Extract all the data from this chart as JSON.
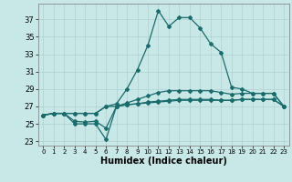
{
  "title": "",
  "xlabel": "Humidex (Indice chaleur)",
  "background_color": "#c8e8e8",
  "line_color": "#1a6b6b",
  "xlim": [
    -0.5,
    23.5
  ],
  "ylim": [
    22.5,
    38.8
  ],
  "yticks": [
    23,
    25,
    27,
    29,
    31,
    33,
    35,
    37
  ],
  "xticks": [
    0,
    1,
    2,
    3,
    4,
    5,
    6,
    7,
    8,
    9,
    10,
    11,
    12,
    13,
    14,
    15,
    16,
    17,
    18,
    19,
    20,
    21,
    22,
    23
  ],
  "series": [
    [
      26.0,
      26.2,
      26.2,
      25.0,
      25.0,
      25.0,
      23.2,
      27.0,
      27.2,
      27.3,
      27.4,
      27.5,
      27.6,
      27.7,
      27.7,
      27.7,
      27.7,
      27.7,
      27.7,
      27.8,
      27.8,
      27.8,
      27.8,
      27.0
    ],
    [
      26.0,
      26.2,
      26.2,
      25.3,
      25.2,
      25.3,
      24.5,
      27.0,
      27.4,
      27.8,
      28.2,
      28.6,
      28.8,
      28.8,
      28.8,
      28.8,
      28.8,
      28.6,
      28.4,
      28.5,
      28.5,
      28.5,
      28.5,
      27.0
    ],
    [
      26.0,
      26.2,
      26.2,
      26.2,
      26.2,
      26.2,
      27.0,
      27.3,
      29.0,
      31.2,
      34.0,
      38.0,
      36.2,
      37.2,
      37.2,
      36.0,
      34.2,
      33.2,
      29.2,
      29.0,
      28.5,
      28.5,
      28.5,
      27.0
    ],
    [
      26.0,
      26.2,
      26.2,
      26.2,
      26.2,
      26.2,
      27.0,
      27.0,
      27.2,
      27.3,
      27.5,
      27.6,
      27.7,
      27.8,
      27.8,
      27.8,
      27.8,
      27.7,
      27.7,
      27.8,
      27.8,
      27.8,
      27.8,
      27.0
    ]
  ],
  "grid_color": "#b0d0d0",
  "spine_color": "#888888",
  "marker_size": 2.0,
  "linewidth": 0.9
}
